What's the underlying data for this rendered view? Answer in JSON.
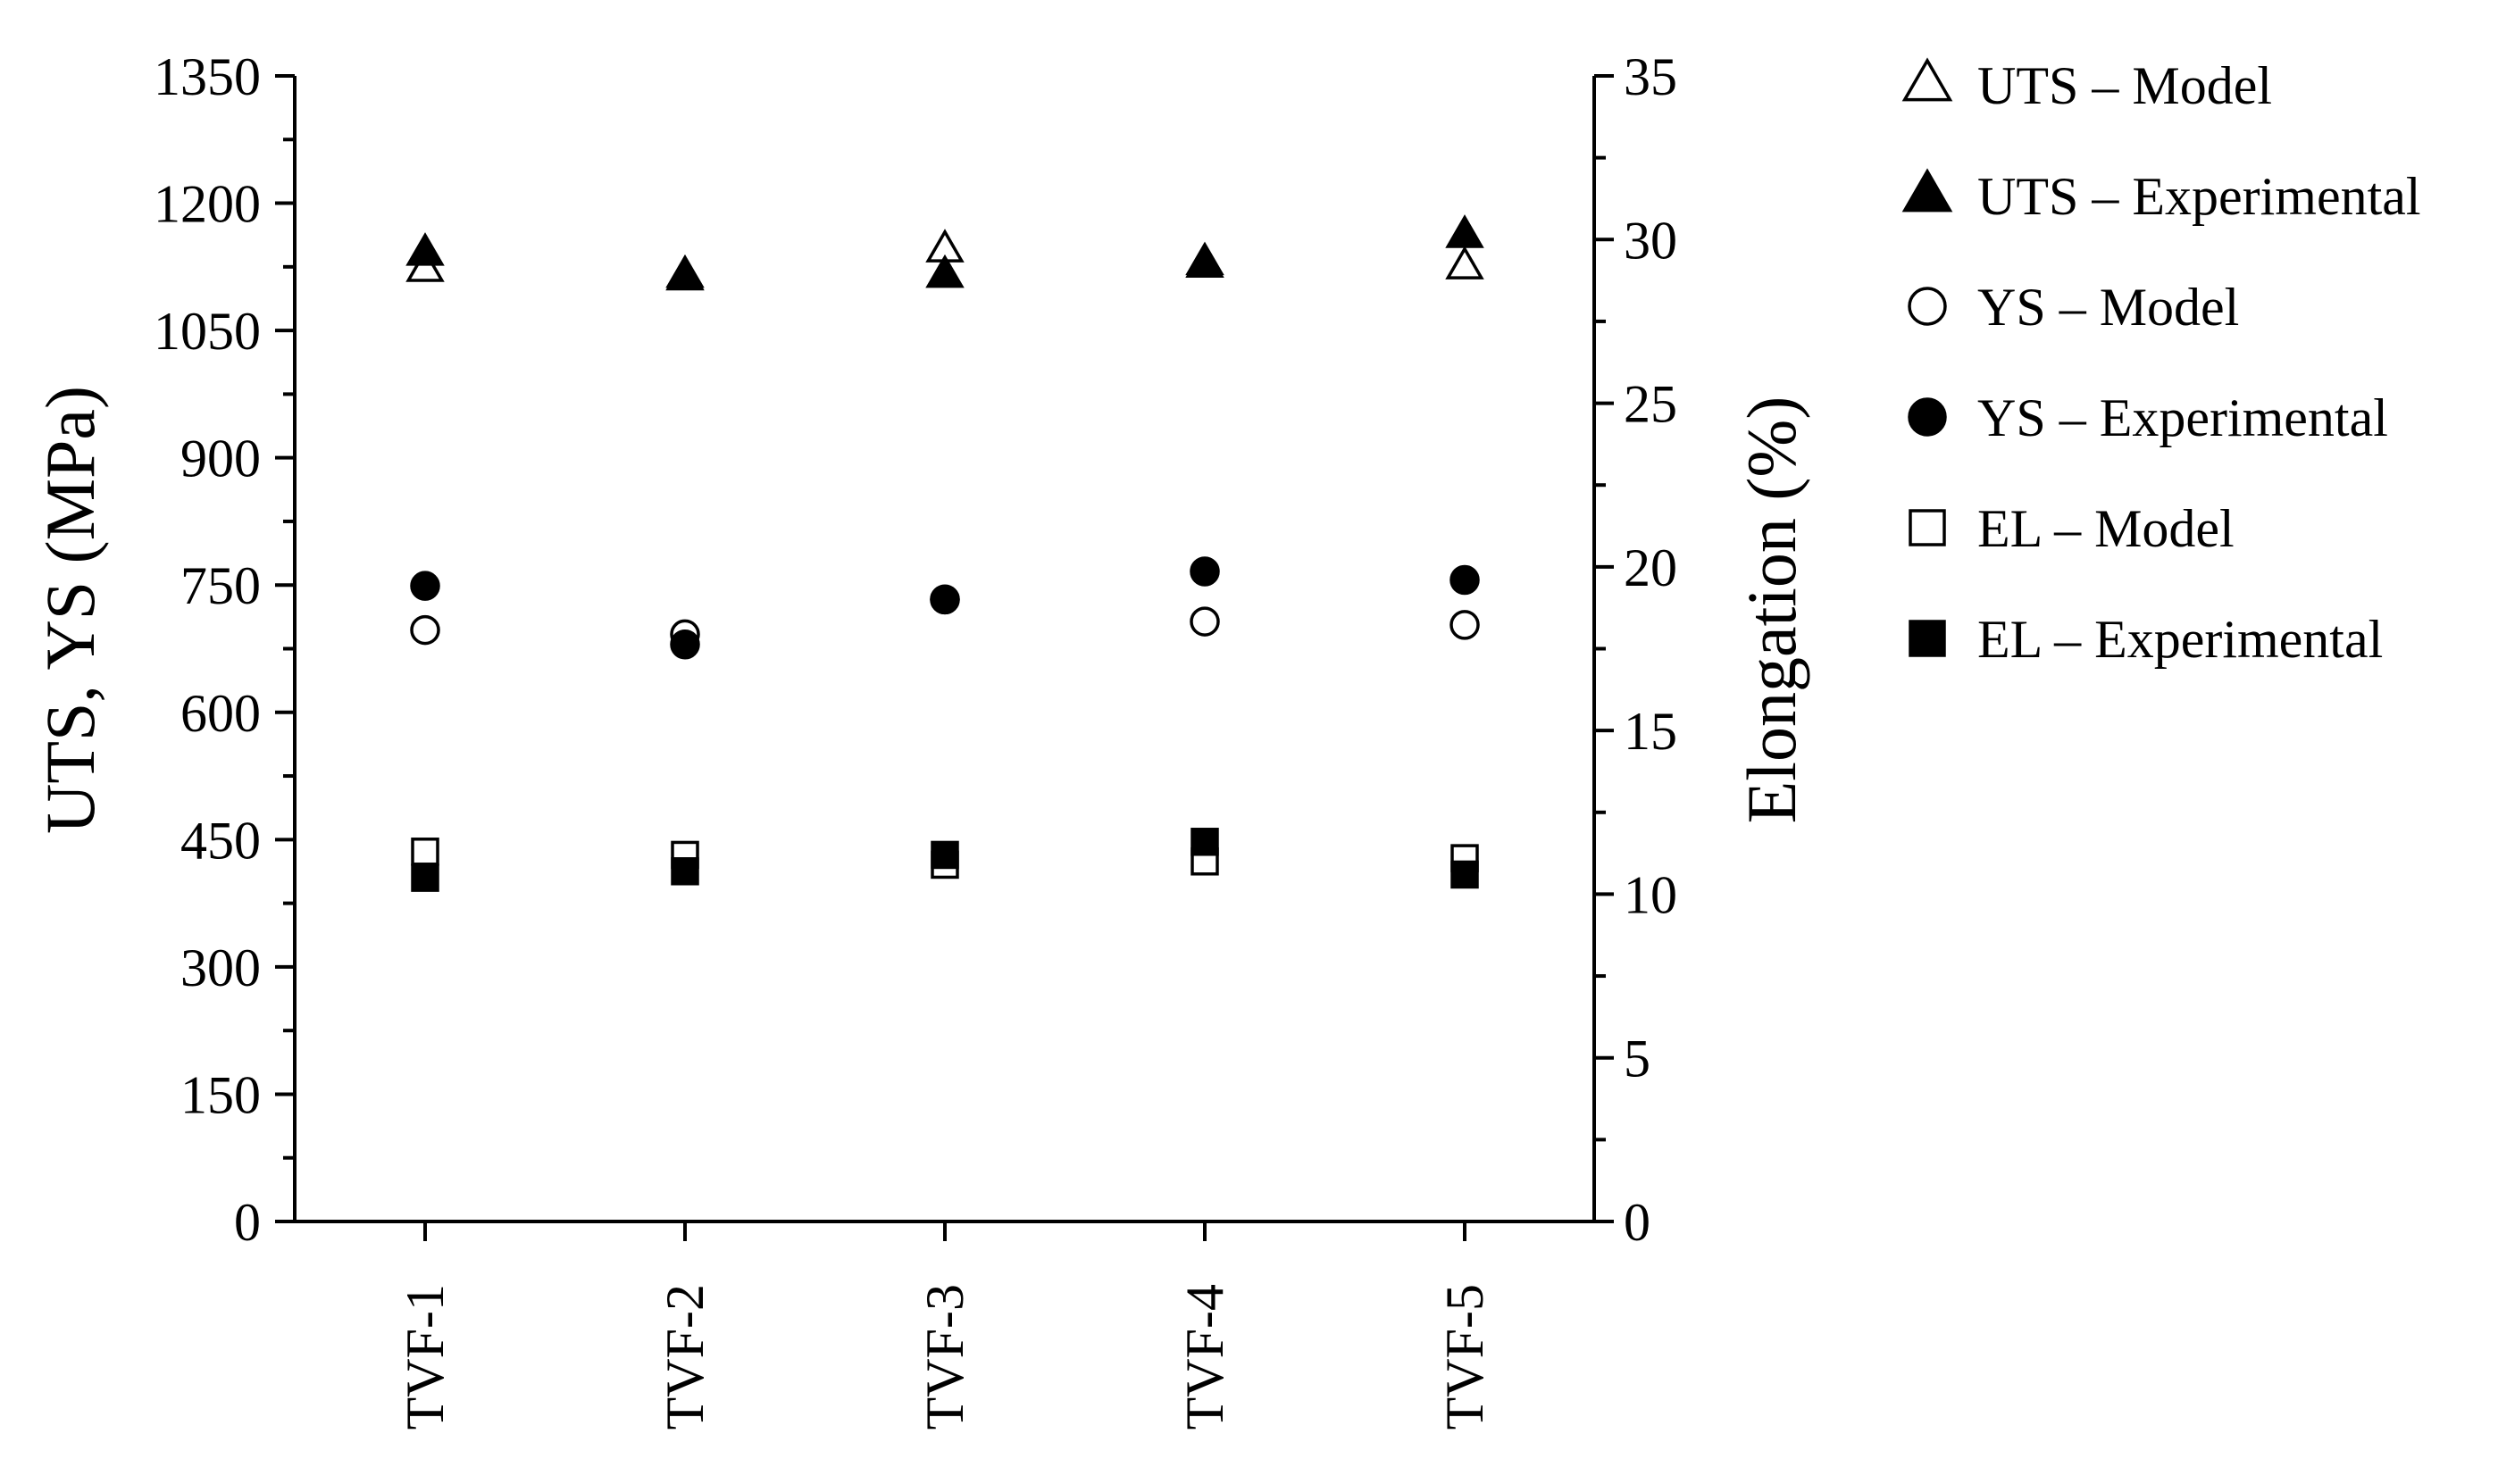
{
  "chart_data": {
    "type": "scatter",
    "categories": [
      "TVF-1",
      "TVF-2",
      "TVF-3",
      "TVF-4",
      "TVF-5"
    ],
    "left_axis": {
      "label": "UTS, YS (MPa)",
      "range": [
        0,
        1350
      ],
      "ticks": [
        "0",
        "150",
        "300",
        "450",
        "600",
        "750",
        "900",
        "1050",
        "1200",
        "1350"
      ]
    },
    "right_axis": {
      "label": "Elongation (%)",
      "range": [
        0,
        35
      ],
      "ticks": [
        "0",
        "5",
        "10",
        "15",
        "20",
        "25",
        "30",
        "35"
      ]
    },
    "legend_position": "right",
    "grid": false,
    "series": [
      {
        "name": "UTS – Model",
        "axis": "left",
        "marker": "triangle",
        "filled": false,
        "values": [
          1122,
          1112,
          1145,
          1127,
          1125
        ]
      },
      {
        "name": "UTS – Experimental",
        "axis": "left",
        "marker": "triangle",
        "filled": true,
        "values": [
          1141,
          1115,
          1115,
          1130,
          1162
        ]
      },
      {
        "name": "YS – Model",
        "axis": "left",
        "marker": "circle",
        "filled": false,
        "values": [
          697,
          692,
          733,
          707,
          703
        ]
      },
      {
        "name": "YS – Experimental",
        "axis": "left",
        "marker": "circle",
        "filled": true,
        "values": [
          749,
          680,
          733,
          766,
          756
        ]
      },
      {
        "name": "EL – Model",
        "axis": "right",
        "marker": "square",
        "filled": false,
        "values": [
          11.3,
          11.2,
          10.9,
          11.0,
          11.1
        ]
      },
      {
        "name": "EL – Experimental",
        "axis": "right",
        "marker": "square",
        "filled": true,
        "values": [
          10.5,
          10.7,
          11.2,
          11.6,
          10.6
        ]
      }
    ]
  }
}
